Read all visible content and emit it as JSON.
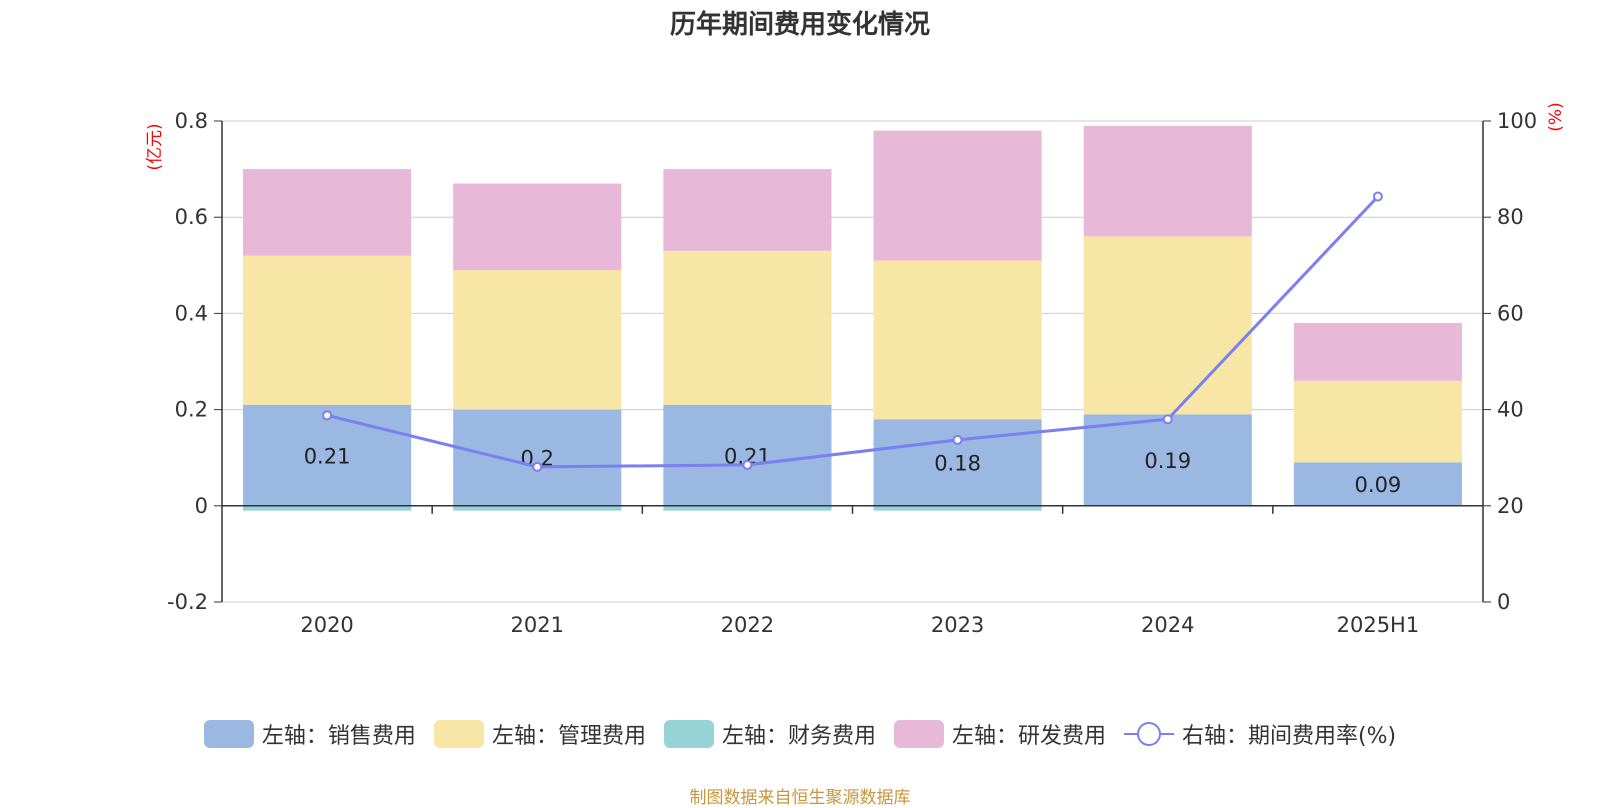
{
  "chart_data": {
    "type": "bar",
    "title": "历年期间费用变化情况",
    "categories": [
      "2020",
      "2021",
      "2022",
      "2023",
      "2024",
      "2025H1"
    ],
    "left_axis": {
      "unit_label": "(亿元)",
      "ylim": [
        -0.2,
        0.8
      ],
      "ticks": [
        "0.8",
        "0.6",
        "0.4",
        "0.2",
        "0",
        "-0.2"
      ]
    },
    "right_axis": {
      "unit_label": "(%)",
      "ylim": [
        0,
        100
      ],
      "ticks": [
        "100",
        "80",
        "60",
        "40",
        "20",
        "0"
      ]
    },
    "series": [
      {
        "name": "左轴：销售费用",
        "kind": "bar",
        "color": "#9bb8e2",
        "values": [
          0.21,
          0.2,
          0.21,
          0.18,
          0.19,
          0.09
        ],
        "labels": [
          "0.21",
          "0.2",
          "0.21",
          "0.18",
          "0.19",
          "0.09"
        ]
      },
      {
        "name": "左轴：管理费用",
        "kind": "bar",
        "color": "#f7e6a6",
        "values": [
          0.31,
          0.29,
          0.32,
          0.33,
          0.37,
          0.17
        ]
      },
      {
        "name": "左轴：财务费用",
        "kind": "bar",
        "color": "#96d3d6",
        "values": [
          -0.01,
          -0.01,
          -0.01,
          -0.01,
          0.0,
          0.0
        ]
      },
      {
        "name": "左轴：研发费用",
        "kind": "bar",
        "color": "#e7b8d8",
        "values": [
          0.18,
          0.18,
          0.17,
          0.27,
          0.23,
          0.12
        ]
      },
      {
        "name": "右轴：期间费用率(%)",
        "kind": "line",
        "color": "#7b7ff0",
        "values": [
          38.8,
          28.1,
          28.5,
          33.7,
          38.0,
          84.3
        ]
      }
    ],
    "grid": true,
    "legend_position": "bottom"
  },
  "source_note": "制图数据来自恒生聚源数据库"
}
